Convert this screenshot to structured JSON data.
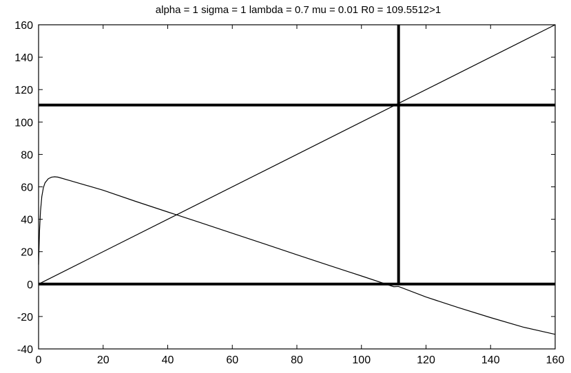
{
  "chart_data": {
    "type": "line",
    "title": "alpha = 1  sigma = 1  lambda = 0.7  mu = 0.01  R0 = 109.5512>1",
    "xlabel": "",
    "ylabel": "",
    "xlim": [
      0,
      160
    ],
    "ylim": [
      -40,
      160
    ],
    "xticks": [
      0,
      20,
      40,
      60,
      80,
      100,
      120,
      140,
      160
    ],
    "yticks": [
      -40,
      -20,
      0,
      20,
      40,
      60,
      80,
      100,
      120,
      140,
      160
    ],
    "grid": false,
    "legend": "none",
    "series": [
      {
        "x": [
          0,
          160
        ],
        "y": [
          0,
          160
        ]
      },
      {
        "x": [
          0,
          0.3,
          0.6,
          1,
          1.5,
          2,
          3,
          4,
          5,
          6,
          10,
          20,
          30,
          40,
          50,
          60,
          70,
          80,
          90,
          100,
          110,
          111.5,
          120,
          130,
          140,
          150,
          160
        ],
        "y": [
          12,
          33,
          45,
          54,
          59.5,
          62.5,
          65,
          66,
          66.2,
          66,
          63.7,
          57.9,
          51.1,
          44.5,
          38,
          31.4,
          24.8,
          18.1,
          11.5,
          5,
          -1.6,
          -1.5,
          -8,
          -14.5,
          -20.7,
          -26.5,
          -31
        ]
      }
    ],
    "reference_lines": {
      "horizontal": [
        110.5,
        0
      ],
      "vertical": [
        111.5
      ]
    },
    "colors": {
      "line": "#000000",
      "background": "#ffffff",
      "axes": "#000000"
    }
  }
}
